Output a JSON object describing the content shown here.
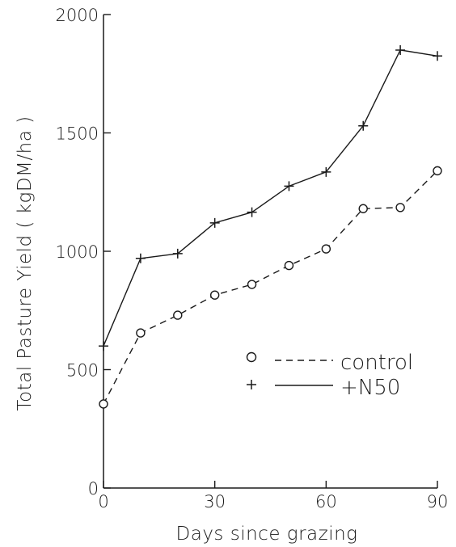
{
  "chart_data": {
    "type": "line",
    "xlabel": "Days since grazing",
    "ylabel": "Total Pasture Yield ( kgDM/ha )",
    "xlim": [
      0,
      90
    ],
    "ylim": [
      0,
      2000
    ],
    "x_ticks": [
      0,
      30,
      60,
      90
    ],
    "y_ticks": [
      0,
      500,
      1000,
      1500,
      2000
    ],
    "x_tick_labels": [
      "0",
      "30",
      "60",
      "90"
    ],
    "y_tick_labels": [
      "0",
      "500",
      "1000",
      "1500",
      "2000"
    ],
    "grid": false,
    "legend_position": "center-right",
    "series": [
      {
        "name": "control",
        "marker": "circle",
        "line_style": "dashed",
        "color": "#1a1a1a",
        "x": [
          0,
          10,
          20,
          30,
          40,
          50,
          60,
          70,
          80,
          90
        ],
        "y": [
          355,
          655,
          730,
          815,
          860,
          940,
          1010,
          1180,
          1185,
          1340
        ]
      },
      {
        "name": "+N50",
        "marker": "plus",
        "line_style": "solid",
        "color": "#1a1a1a",
        "x": [
          0,
          10,
          20,
          30,
          40,
          50,
          60,
          70,
          80,
          90
        ],
        "y": [
          600,
          970,
          990,
          1120,
          1165,
          1275,
          1335,
          1530,
          1850,
          1825
        ]
      }
    ]
  }
}
